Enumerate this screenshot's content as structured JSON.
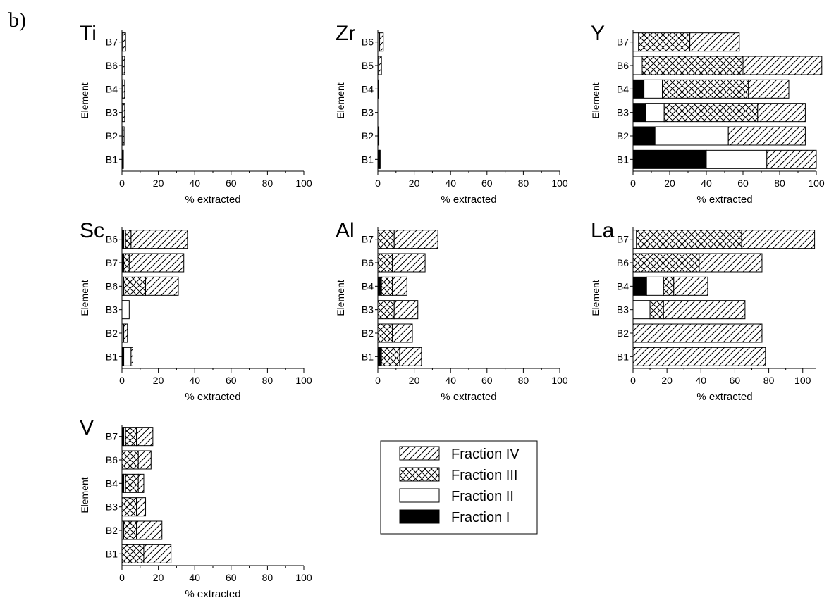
{
  "figure_label": "b)",
  "colors": {
    "fraction_I": "#000000",
    "fraction_II": "#ffffff",
    "axis": "#000000"
  },
  "legend": {
    "entries": [
      {
        "name": "Fraction IV",
        "pattern": "diagonal"
      },
      {
        "name": "Fraction III",
        "pattern": "crosshatch"
      },
      {
        "name": "Fraction II",
        "pattern": "white"
      },
      {
        "name": "Fraction I",
        "pattern": "black"
      }
    ]
  },
  "chart_data": [
    {
      "type": "bar",
      "title": "Ti",
      "orientation": "horizontal",
      "stacked": true,
      "xlabel": "% extracted",
      "ylabel": "Element",
      "xlim": [
        0,
        100
      ],
      "xticks": [
        0,
        20,
        40,
        60,
        80,
        100
      ],
      "categories": [
        "B7",
        "B6",
        "B4",
        "B3",
        "B2",
        "B1"
      ],
      "series": [
        {
          "name": "Fraction I",
          "values": [
            0,
            0,
            0,
            0,
            0,
            0.5
          ]
        },
        {
          "name": "Fraction II",
          "values": [
            0.5,
            0.5,
            0.5,
            0.5,
            0.5,
            0.3
          ]
        },
        {
          "name": "Fraction III",
          "values": [
            0,
            0,
            0,
            0,
            0,
            0
          ]
        },
        {
          "name": "Fraction IV",
          "values": [
            1.5,
            1.0,
            1.0,
            1.0,
            0.7,
            0
          ]
        }
      ]
    },
    {
      "type": "bar",
      "title": "Zr",
      "orientation": "horizontal",
      "stacked": true,
      "xlabel": "% extracted",
      "ylabel": "Element",
      "xlim": [
        0,
        100
      ],
      "xticks": [
        0,
        20,
        40,
        60,
        80,
        100
      ],
      "categories": [
        "B6",
        "B5",
        "B4",
        "B3",
        "B2",
        "B1"
      ],
      "series": [
        {
          "name": "Fraction I",
          "values": [
            0,
            0,
            0,
            0,
            0,
            1.0
          ]
        },
        {
          "name": "Fraction II",
          "values": [
            1.0,
            0.5,
            0.3,
            0,
            0.3,
            0.3
          ]
        },
        {
          "name": "Fraction III",
          "values": [
            0,
            0,
            0,
            0,
            0,
            0
          ]
        },
        {
          "name": "Fraction IV",
          "values": [
            2.0,
            1.5,
            0,
            0,
            0.3,
            0
          ]
        }
      ]
    },
    {
      "type": "bar",
      "title": "Y",
      "orientation": "horizontal",
      "stacked": true,
      "xlabel": "% extracted",
      "ylabel": "Element",
      "xlim": [
        0,
        100
      ],
      "xticks": [
        0,
        20,
        40,
        60,
        80,
        100
      ],
      "categories": [
        "B7",
        "B6",
        "B4",
        "B3",
        "B2",
        "B1"
      ],
      "series": [
        {
          "name": "Fraction I",
          "values": [
            0,
            0,
            6,
            7,
            12,
            40
          ]
        },
        {
          "name": "Fraction II",
          "values": [
            3,
            5,
            10,
            10,
            40,
            33
          ]
        },
        {
          "name": "Fraction III",
          "values": [
            28,
            55,
            47,
            51,
            0,
            0
          ]
        },
        {
          "name": "Fraction IV",
          "values": [
            27,
            43,
            22,
            26,
            42,
            27
          ]
        }
      ]
    },
    {
      "type": "bar",
      "title": "Sc",
      "orientation": "horizontal",
      "stacked": true,
      "xlabel": "% extracted",
      "ylabel": "Element",
      "xlim": [
        0,
        100
      ],
      "xticks": [
        0,
        20,
        40,
        60,
        80,
        100
      ],
      "categories": [
        "B6",
        "B7",
        "B6",
        "B3",
        "B2",
        "B1"
      ],
      "series": [
        {
          "name": "Fraction I",
          "values": [
            1,
            1,
            0,
            0,
            0,
            1
          ]
        },
        {
          "name": "Fraction II",
          "values": [
            1,
            0,
            1,
            4,
            1,
            4
          ]
        },
        {
          "name": "Fraction III",
          "values": [
            3,
            3,
            12,
            0,
            0,
            0
          ]
        },
        {
          "name": "Fraction IV",
          "values": [
            31,
            30,
            18,
            0,
            2,
            1
          ]
        }
      ]
    },
    {
      "type": "bar",
      "title": "Al",
      "orientation": "horizontal",
      "stacked": true,
      "xlabel": "% extracted",
      "ylabel": "Element",
      "xlim": [
        0,
        100
      ],
      "xticks": [
        0,
        20,
        40,
        60,
        80,
        100
      ],
      "categories": [
        "B7",
        "B6",
        "B4",
        "B3",
        "B2",
        "B1"
      ],
      "series": [
        {
          "name": "Fraction I",
          "values": [
            0,
            0,
            2,
            0,
            0,
            2
          ]
        },
        {
          "name": "Fraction II",
          "values": [
            0,
            0,
            0,
            0,
            0,
            0
          ]
        },
        {
          "name": "Fraction III",
          "values": [
            9,
            8,
            6,
            9,
            8,
            10
          ]
        },
        {
          "name": "Fraction IV",
          "values": [
            24,
            18,
            8,
            13,
            11,
            12
          ]
        }
      ]
    },
    {
      "type": "bar",
      "title": "La",
      "orientation": "horizontal",
      "stacked": true,
      "xlabel": "% extracted",
      "ylabel": "Element",
      "xlim": [
        0,
        108
      ],
      "xticks": [
        0,
        20,
        40,
        60,
        80,
        100
      ],
      "categories": [
        "B7",
        "B6",
        "B4",
        "B3",
        "B2",
        "B1"
      ],
      "series": [
        {
          "name": "Fraction I",
          "values": [
            0,
            0,
            8,
            0,
            0,
            0
          ]
        },
        {
          "name": "Fraction II",
          "values": [
            2,
            0,
            10,
            10,
            0,
            0
          ]
        },
        {
          "name": "Fraction III",
          "values": [
            62,
            39,
            6,
            8,
            0,
            0
          ]
        },
        {
          "name": "Fraction IV",
          "values": [
            43,
            37,
            20,
            48,
            76,
            78
          ]
        }
      ]
    },
    {
      "type": "bar",
      "title": "V",
      "orientation": "horizontal",
      "stacked": true,
      "xlabel": "% extracted",
      "ylabel": "Element",
      "xlim": [
        0,
        100
      ],
      "xticks": [
        0,
        20,
        40,
        60,
        80,
        100
      ],
      "categories": [
        "B7",
        "B6",
        "B4",
        "B3",
        "B2",
        "B1"
      ],
      "series": [
        {
          "name": "Fraction I",
          "values": [
            1,
            0,
            1,
            0,
            0,
            0
          ]
        },
        {
          "name": "Fraction II",
          "values": [
            1,
            0,
            1,
            0,
            1,
            0
          ]
        },
        {
          "name": "Fraction III",
          "values": [
            6,
            9,
            7,
            8,
            7,
            12
          ]
        },
        {
          "name": "Fraction IV",
          "values": [
            9,
            7,
            3,
            5,
            14,
            15
          ]
        }
      ]
    }
  ]
}
